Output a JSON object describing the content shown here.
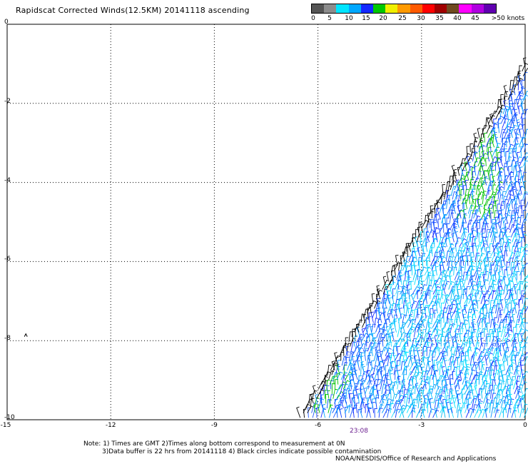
{
  "title": "Rapidscat Corrected Winds(12.5KM) 20141118 ascending",
  "wind_scale": {
    "labels": [
      "0",
      "5",
      "10",
      "15",
      "20",
      "25",
      "30",
      "35",
      "40",
      "45",
      ">50 knots"
    ],
    "colors": [
      "#555555",
      "#8c8c8c",
      "#00e5ff",
      "#00a8ff",
      "#1428ff",
      "#00c800",
      "#f0f000",
      "#ff9a00",
      "#ff5a00",
      "#ff0000",
      "#a00000",
      "#704a20",
      "#ff00ff",
      "#b000e0",
      "#6000b0"
    ]
  },
  "axes": {
    "x_labels": [
      "-15",
      "-12",
      "-9",
      "-6",
      "-3",
      "0"
    ],
    "y_labels": [
      "0",
      "-2",
      "-4",
      "-6",
      "-8",
      "-10"
    ],
    "x_range": [
      -15,
      0
    ],
    "y_range": [
      -10,
      0
    ],
    "grid": true
  },
  "time_label": "23:08",
  "notes": [
    "Note: 1) Times are GMT 2)Times along bottom correspond to measurement at 0N",
    "3)Data buffer is 22 hrs from 20141118 4) Black circles indicate possible contamination"
  ],
  "credit": "NOAA/NESDIS/Office of Research and Applications",
  "swath": {
    "lower_left": {
      "lon": -6.6,
      "lat": -10
    },
    "upper_right": {
      "lon": 0,
      "lat": -1
    },
    "spacing_deg": 0.12
  }
}
